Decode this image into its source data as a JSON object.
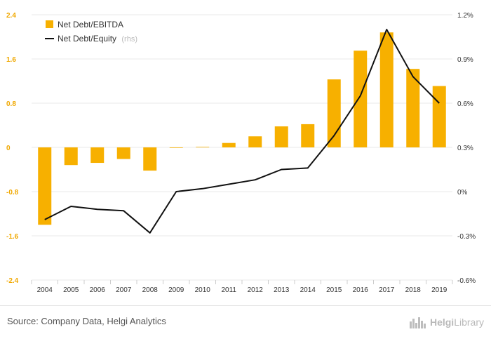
{
  "chart_data": {
    "type": "bar+line",
    "categories": [
      "2004",
      "2005",
      "2006",
      "2007",
      "2008",
      "2009",
      "2010",
      "2011",
      "2012",
      "2013",
      "2014",
      "2015",
      "2016",
      "2017",
      "2018",
      "2019"
    ],
    "series": [
      {
        "name": "Net Debt/EBITDA",
        "type": "bar",
        "axis": "left",
        "values": [
          -1.4,
          -0.32,
          -0.28,
          -0.21,
          -0.42,
          -0.01,
          0.01,
          0.08,
          0.2,
          0.38,
          0.42,
          1.23,
          1.75,
          2.08,
          1.42,
          1.11
        ]
      },
      {
        "name": "Net Debt/Equity",
        "name_suffix": "(rhs)",
        "type": "line",
        "axis": "right",
        "values": [
          -0.19,
          -0.1,
          -0.12,
          -0.13,
          -0.28,
          0.0,
          0.02,
          0.05,
          0.08,
          0.15,
          0.16,
          0.38,
          0.65,
          1.1,
          0.78,
          0.6
        ]
      }
    ],
    "y_left": {
      "ticks": [
        "2.4",
        "1.6",
        "0.8",
        "0",
        "-0.8",
        "-1.6",
        "-2.4"
      ],
      "min": -2.4,
      "max": 2.4
    },
    "y_right": {
      "ticks": [
        "1.2%",
        "0.9%",
        "0.6%",
        "0.3%",
        "0%",
        "-0.3%",
        "-0.6%"
      ],
      "min": -0.6,
      "max": 1.2
    },
    "legend_position": "top-left",
    "grid": "horizontal",
    "colors": {
      "bar": "#f7b000",
      "line": "#111111",
      "left_ticks": "#f0a800",
      "right_ticks": "#333333",
      "grid": "#e9e9e9"
    }
  },
  "footer": {
    "source": "Source: Company Data, Helgi Analytics",
    "logo_icon": "city-skyline-icon",
    "logo_a": "Helgi",
    "logo_b": "Library"
  }
}
